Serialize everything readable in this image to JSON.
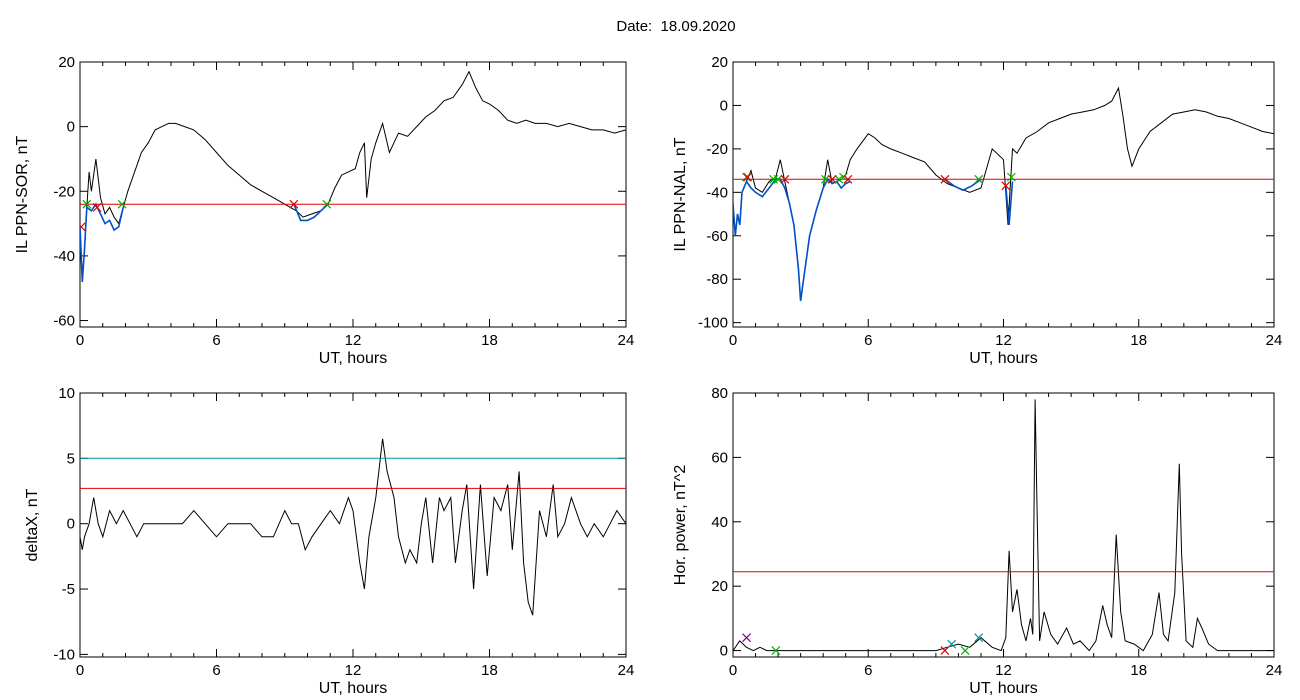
{
  "page": {
    "title": "Date:  18.09.2020"
  },
  "colors": {
    "background": "#ffffff",
    "axes": "#000000",
    "threshold_red": "#e00000",
    "threshold_teal": "#009a9a",
    "substorm_trace": "#0050c8",
    "marker_red": "#e00000",
    "marker_green": "#00b000",
    "marker_purple": "#800080",
    "marker_teal": "#0090a0"
  },
  "chart_data": [
    {
      "id": "ppn-sor",
      "type": "line",
      "xlabel": "UT, hours",
      "ylabel": "IL PPN-SOR, nT",
      "xlim": [
        0,
        24
      ],
      "ylim": [
        -62,
        20
      ],
      "xticks": [
        0,
        6,
        12,
        18,
        24
      ],
      "yticks": [
        20,
        0,
        -20,
        -40,
        -60
      ],
      "series": [
        {
          "role": "data",
          "color": "#000000",
          "x": [
            0,
            0.1,
            0.2,
            0.3,
            0.4,
            0.5,
            0.7,
            0.9,
            1.1,
            1.3,
            1.5,
            1.7,
            1.9,
            2.1,
            2.4,
            2.7,
            3.0,
            3.3,
            3.6,
            3.9,
            4.2,
            4.6,
            5.0,
            5.5,
            6.0,
            6.5,
            7.0,
            7.5,
            8.0,
            8.5,
            9.0,
            9.5,
            9.8,
            10.2,
            10.6,
            10.9,
            11.2,
            11.5,
            11.8,
            12.1,
            12.3,
            12.5,
            12.6,
            12.8,
            13.0,
            13.3,
            13.6,
            14.0,
            14.4,
            14.8,
            15.2,
            15.6,
            16.0,
            16.4,
            16.8,
            17.1,
            17.4,
            17.7,
            18.0,
            18.4,
            18.8,
            19.2,
            19.6,
            20.0,
            20.5,
            21.0,
            21.5,
            22.0,
            22.5,
            23.0,
            23.5,
            24.0
          ],
          "y": [
            -31,
            -48,
            -38,
            -25,
            -14,
            -20,
            -10,
            -22,
            -27,
            -25,
            -28,
            -30,
            -25,
            -20,
            -14,
            -8,
            -5,
            -1,
            0,
            1,
            1,
            0,
            -1,
            -4,
            -8,
            -12,
            -15,
            -18,
            -20,
            -22,
            -24,
            -26,
            -28,
            -27,
            -26,
            -24,
            -19,
            -15,
            -14,
            -13,
            -8,
            -5,
            -22,
            -10,
            -5,
            1,
            -8,
            -2,
            -3,
            0,
            3,
            5,
            8,
            9,
            13,
            17,
            12,
            8,
            7,
            5,
            2,
            1,
            2,
            1,
            1,
            0,
            1,
            0,
            -1,
            -1,
            -2,
            -1
          ]
        },
        {
          "role": "substorm",
          "color": "#0050c8",
          "x": [
            0,
            0.1,
            0.2,
            0.3,
            0.5,
            0.7,
            0.9,
            1.1,
            1.3,
            1.5,
            1.7,
            1.9
          ],
          "y": [
            -31,
            -48,
            -38,
            -25,
            -26,
            -24,
            -27,
            -30,
            -29,
            -32,
            -31,
            -25
          ]
        },
        {
          "role": "substorm",
          "color": "#0050c8",
          "x": [
            9.4,
            9.7,
            10.0,
            10.3,
            10.6,
            10.9
          ],
          "y": [
            -24,
            -29,
            -29,
            -28,
            -26,
            -24
          ]
        },
        {
          "role": "threshold",
          "color": "#e00000",
          "x": [
            0,
            24
          ],
          "y": [
            -24,
            -24
          ]
        }
      ],
      "markers": [
        {
          "x": 0.05,
          "y": -31,
          "color": "#e00000"
        },
        {
          "x": 0.3,
          "y": -24,
          "color": "#00b000"
        },
        {
          "x": 0.75,
          "y": -25,
          "color": "#e00000"
        },
        {
          "x": 1.85,
          "y": -24,
          "color": "#00b000"
        },
        {
          "x": 9.4,
          "y": -24,
          "color": "#e00000"
        },
        {
          "x": 10.85,
          "y": -24,
          "color": "#00b000"
        }
      ]
    },
    {
      "id": "ppn-nal",
      "type": "line",
      "xlabel": "UT, hours",
      "ylabel": "IL PPN-NAL, nT",
      "xlim": [
        0,
        24
      ],
      "ylim": [
        -102,
        20
      ],
      "xticks": [
        0,
        6,
        12,
        18,
        24
      ],
      "yticks": [
        20,
        0,
        -20,
        -40,
        -60,
        -80,
        -100
      ],
      "series": [
        {
          "role": "data",
          "color": "#000000",
          "x": [
            0,
            0.1,
            0.2,
            0.3,
            0.4,
            0.6,
            0.8,
            1.0,
            1.3,
            1.6,
            1.9,
            2.1,
            2.3,
            2.5,
            2.7,
            2.9,
            3.0,
            3.2,
            3.4,
            3.7,
            4.0,
            4.2,
            4.4,
            4.6,
            4.8,
            5.0,
            5.2,
            5.5,
            6.0,
            6.3,
            6.6,
            7.0,
            7.5,
            8.0,
            8.5,
            9.0,
            9.5,
            10.0,
            10.5,
            11.0,
            11.5,
            12.0,
            12.2,
            12.4,
            12.6,
            13.0,
            13.5,
            14.0,
            14.5,
            15.0,
            15.5,
            16.0,
            16.5,
            16.8,
            17.1,
            17.3,
            17.5,
            17.7,
            18.0,
            18.5,
            19.0,
            19.5,
            20.0,
            20.5,
            21.0,
            21.5,
            22.0,
            22.5,
            23.0,
            23.5,
            24.0
          ],
          "y": [
            -45,
            -60,
            -50,
            -55,
            -40,
            -35,
            -30,
            -38,
            -40,
            -35,
            -33,
            -25,
            -35,
            -45,
            -55,
            -75,
            -90,
            -75,
            -60,
            -48,
            -38,
            -25,
            -36,
            -35,
            -34,
            -32,
            -25,
            -20,
            -13,
            -15,
            -18,
            -20,
            -22,
            -24,
            -26,
            -32,
            -36,
            -38,
            -40,
            -38,
            -20,
            -25,
            -55,
            -20,
            -22,
            -15,
            -12,
            -8,
            -6,
            -4,
            -3,
            -2,
            0,
            2,
            8,
            -5,
            -20,
            -28,
            -20,
            -12,
            -8,
            -4,
            -3,
            -2,
            -3,
            -5,
            -6,
            -8,
            -10,
            -12,
            -13
          ]
        },
        {
          "role": "substorm",
          "color": "#0050c8",
          "x": [
            0,
            0.1,
            0.2,
            0.3,
            0.4,
            0.6,
            0.8,
            1.0,
            1.3,
            1.6,
            1.9,
            2.1,
            2.3,
            2.5,
            2.7,
            2.9,
            3.0,
            3.2,
            3.4,
            3.7,
            4.0,
            4.2,
            4.4,
            4.6,
            4.8,
            5.0,
            5.2
          ],
          "y": [
            -45,
            -60,
            -50,
            -55,
            -40,
            -35,
            -38,
            -40,
            -42,
            -38,
            -34,
            -34,
            -38,
            -45,
            -55,
            -75,
            -90,
            -75,
            -60,
            -48,
            -38,
            -34,
            -36,
            -35,
            -38,
            -36,
            -35
          ]
        },
        {
          "role": "substorm",
          "color": "#0050c8",
          "x": [
            9.4,
            9.8,
            10.2,
            10.6,
            11.0
          ],
          "y": [
            -34,
            -37,
            -39,
            -37,
            -34
          ]
        },
        {
          "role": "substorm",
          "color": "#0050c8",
          "x": [
            12.1,
            12.25,
            12.4
          ],
          "y": [
            -37,
            -55,
            -35
          ]
        },
        {
          "role": "threshold",
          "color": "#e00000",
          "x": [
            0,
            24
          ],
          "y": [
            -34,
            -34
          ]
        }
      ],
      "markers": [
        {
          "x": 0.6,
          "y": -33,
          "color": "#00b000"
        },
        {
          "x": 0.65,
          "y": -33,
          "color": "#e00000"
        },
        {
          "x": 1.8,
          "y": -34,
          "color": "#00b000"
        },
        {
          "x": 2.0,
          "y": -34,
          "color": "#00b000"
        },
        {
          "x": 2.3,
          "y": -34,
          "color": "#e00000"
        },
        {
          "x": 4.1,
          "y": -34,
          "color": "#00b000"
        },
        {
          "x": 4.4,
          "y": -34,
          "color": "#e00000"
        },
        {
          "x": 4.7,
          "y": -34,
          "color": "#00b000"
        },
        {
          "x": 4.9,
          "y": -33,
          "color": "#00b000"
        },
        {
          "x": 5.1,
          "y": -34,
          "color": "#e00000"
        },
        {
          "x": 9.4,
          "y": -34,
          "color": "#e00000"
        },
        {
          "x": 10.9,
          "y": -34,
          "color": "#00b000"
        },
        {
          "x": 12.1,
          "y": -37,
          "color": "#e00000"
        },
        {
          "x": 12.35,
          "y": -33,
          "color": "#00b000"
        }
      ]
    },
    {
      "id": "deltax",
      "type": "line",
      "xlabel": "UT, hours",
      "ylabel": "deltaX, nT",
      "xlim": [
        0,
        24
      ],
      "ylim": [
        -10.2,
        10
      ],
      "xticks": [
        0,
        6,
        12,
        18,
        24
      ],
      "yticks": [
        10,
        5,
        0,
        -5,
        -10
      ],
      "series": [
        {
          "role": "data",
          "color": "#000000",
          "x": [
            0,
            0.1,
            0.2,
            0.4,
            0.6,
            0.8,
            1.0,
            1.3,
            1.6,
            1.9,
            2.2,
            2.5,
            2.8,
            3.1,
            3.5,
            4.0,
            4.5,
            5.0,
            5.5,
            6.0,
            6.5,
            7.0,
            7.5,
            8.0,
            8.5,
            9.0,
            9.3,
            9.6,
            9.9,
            10.2,
            10.6,
            11.0,
            11.4,
            11.8,
            12.0,
            12.3,
            12.5,
            12.7,
            13.0,
            13.3,
            13.5,
            13.8,
            14.0,
            14.3,
            14.5,
            14.8,
            15.0,
            15.2,
            15.5,
            15.8,
            16.0,
            16.3,
            16.5,
            16.8,
            17.0,
            17.3,
            17.6,
            17.9,
            18.2,
            18.5,
            18.8,
            19.0,
            19.3,
            19.5,
            19.7,
            19.9,
            20.2,
            20.5,
            20.8,
            21.0,
            21.3,
            21.6,
            22.0,
            22.3,
            22.6,
            23.0,
            23.3,
            23.6,
            24.0
          ],
          "y": [
            -1,
            -2,
            -1,
            0,
            2,
            0,
            -1,
            1,
            0,
            1,
            0,
            -1,
            0,
            0,
            0,
            0,
            0,
            1,
            0,
            -1,
            0,
            0,
            0,
            -1,
            -1,
            1,
            0,
            0,
            -2,
            -1,
            0,
            1,
            0,
            2,
            1,
            -3,
            -5,
            -1,
            2,
            6.5,
            4,
            2,
            -1,
            -3,
            -2,
            -3,
            0,
            2,
            -3,
            2,
            1,
            2,
            -3,
            1,
            3,
            -5,
            3,
            -4,
            2,
            1,
            3,
            -2,
            4,
            -3,
            -6,
            -7,
            1,
            -1,
            3,
            -1,
            0,
            2,
            0,
            -1,
            0,
            -1,
            0,
            1,
            0
          ]
        },
        {
          "role": "threshold",
          "color": "#009a9a",
          "x": [
            0,
            24
          ],
          "y": [
            5,
            5
          ]
        },
        {
          "role": "threshold",
          "color": "#e00000",
          "x": [
            0,
            24
          ],
          "y": [
            2.7,
            2.7
          ]
        }
      ],
      "markers": []
    },
    {
      "id": "hor-power",
      "type": "line",
      "xlabel": "UT, hours",
      "ylabel": "Hor. power, nT^2",
      "xlim": [
        0,
        24
      ],
      "ylim": [
        -2,
        80
      ],
      "xticks": [
        0,
        6,
        12,
        18,
        24
      ],
      "yticks": [
        80,
        60,
        40,
        20,
        0
      ],
      "series": [
        {
          "role": "data",
          "color": "#000000",
          "x": [
            0,
            0.3,
            0.6,
            0.9,
            1.2,
            1.5,
            2.0,
            3.0,
            4.0,
            5.0,
            6.0,
            7.0,
            8.0,
            9.0,
            9.5,
            10.0,
            10.5,
            11.0,
            11.5,
            11.9,
            12.1,
            12.25,
            12.4,
            12.6,
            12.8,
            13.0,
            13.2,
            13.3,
            13.4,
            13.5,
            13.6,
            13.8,
            14.1,
            14.4,
            14.8,
            15.1,
            15.4,
            15.8,
            16.1,
            16.4,
            16.6,
            16.8,
            17.0,
            17.2,
            17.4,
            17.8,
            18.2,
            18.6,
            18.9,
            19.1,
            19.3,
            19.6,
            19.8,
            19.9,
            20.1,
            20.4,
            20.6,
            20.8,
            21.1,
            21.5,
            22.0,
            22.5,
            23.0,
            23.5,
            24.0
          ],
          "y": [
            0,
            3,
            1,
            0,
            1,
            0,
            0,
            0,
            0,
            0,
            0,
            0,
            0,
            0,
            1,
            2,
            1,
            4,
            1,
            0,
            4,
            31,
            12,
            19,
            8,
            3,
            10,
            5,
            78,
            40,
            3,
            12,
            5,
            2,
            7,
            2,
            3,
            0,
            3,
            14,
            8,
            4,
            36,
            12,
            3,
            2,
            0,
            5,
            18,
            5,
            3,
            18,
            58,
            30,
            3,
            1,
            10,
            7,
            2,
            0,
            0,
            0,
            0,
            0,
            0
          ]
        },
        {
          "role": "threshold",
          "color": "#e00000",
          "x": [
            0,
            24
          ],
          "y": [
            24.5,
            24.5
          ]
        }
      ],
      "markers": [
        {
          "x": 0.6,
          "y": 4,
          "color": "#800080"
        },
        {
          "x": 1.9,
          "y": 0,
          "color": "#00b000"
        },
        {
          "x": 9.4,
          "y": 0,
          "color": "#e00000"
        },
        {
          "x": 9.7,
          "y": 2,
          "color": "#0090a0"
        },
        {
          "x": 10.3,
          "y": 0,
          "color": "#00b000"
        },
        {
          "x": 10.9,
          "y": 4,
          "color": "#0090a0"
        }
      ]
    }
  ]
}
